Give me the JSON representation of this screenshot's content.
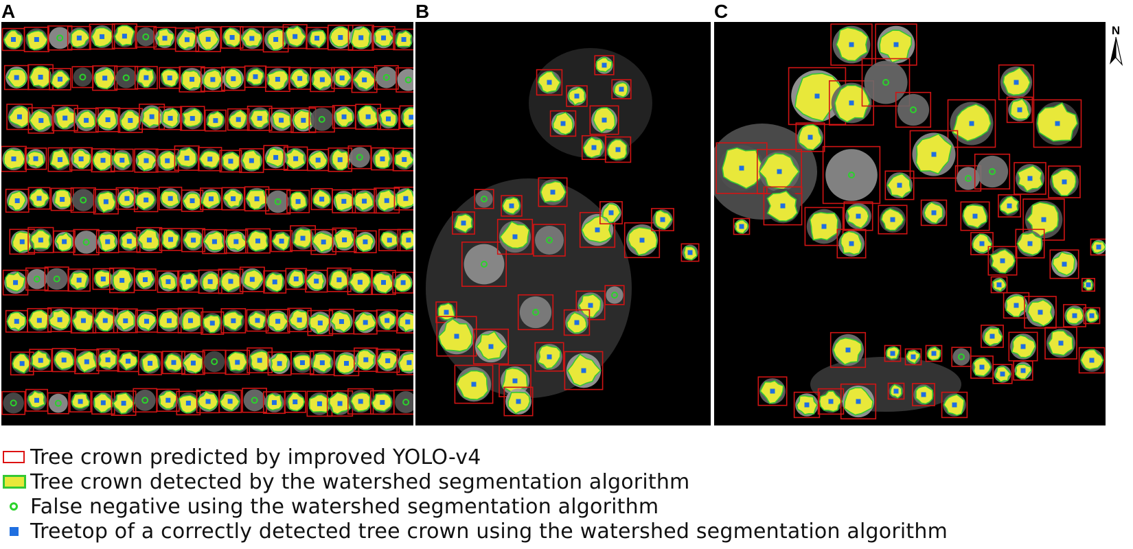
{
  "panels": [
    {
      "letter": "A"
    },
    {
      "letter": "B"
    },
    {
      "letter": "C"
    }
  ],
  "north_arrow_label": "N",
  "legend": [
    {
      "symbol": "red-outline-box",
      "text": "Tree crown predicted by improved YOLO-v4"
    },
    {
      "symbol": "yellow-green-patch",
      "text": "Tree crown detected by the watershed segmentation algorithm"
    },
    {
      "symbol": "green-circle",
      "text": "False negative using the watershed segmentation algorithm"
    },
    {
      "symbol": "blue-square",
      "text": "Treetop of a correctly detected tree crown using the watershed segmentation algorithm"
    }
  ],
  "colors": {
    "prediction_box": "#d11414",
    "crown_fill": "#e8e83a",
    "crown_edge": "#34c834",
    "false_negative": "#2bd32b",
    "treetop": "#1f6fe0",
    "background": "#000000"
  }
}
